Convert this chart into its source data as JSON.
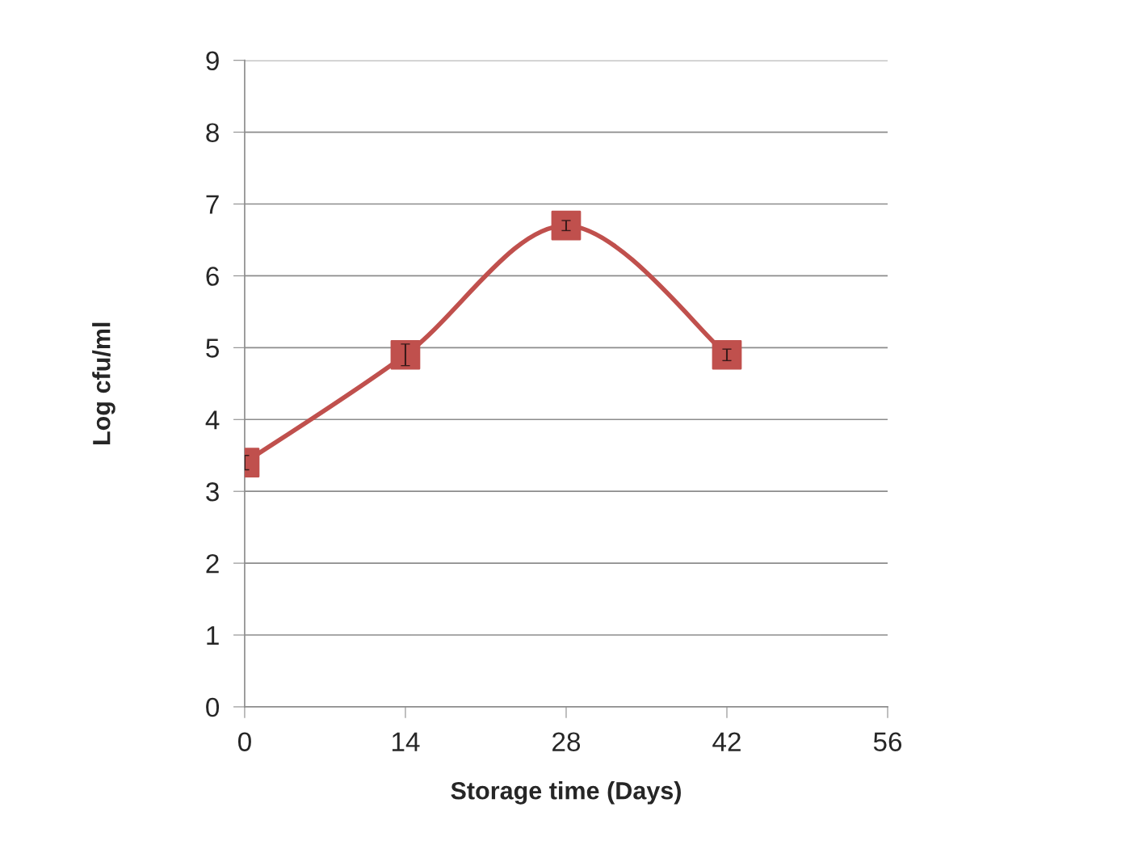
{
  "chart_data": {
    "type": "line",
    "xlabel": "Storage time (Days)",
    "ylabel": "Log cfu/ml",
    "x": [
      0,
      14,
      28,
      42
    ],
    "series": [
      {
        "color": "#c0504d",
        "values": [
          3.4,
          4.9,
          6.7,
          4.9
        ],
        "errors": [
          0.1,
          0.15,
          0.07,
          0.08
        ]
      }
    ],
    "xlim": [
      0,
      56
    ],
    "xticks": [
      0,
      14,
      28,
      42,
      56
    ],
    "ylim": [
      0,
      9
    ],
    "yticks": [
      0,
      1,
      2,
      3,
      4,
      5,
      6,
      7,
      8,
      9
    ],
    "grid": "y",
    "marker": "square",
    "line_style": "solid"
  }
}
